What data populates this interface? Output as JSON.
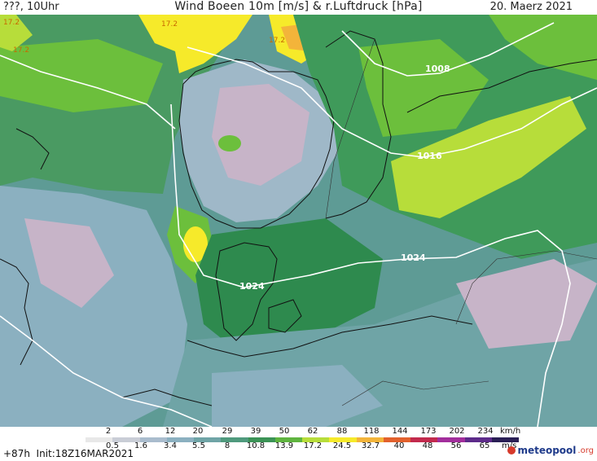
{
  "header": {
    "left": "???, 10Uhr",
    "title": "Wind Boeen 10m [m/s] & r.Luftdruck [hPa]",
    "date": "20. Maerz 2021"
  },
  "map": {
    "isobars": [
      {
        "label": "1008"
      },
      {
        "label": "1016"
      },
      {
        "label": "1024"
      },
      {
        "label": "1024"
      }
    ],
    "gust_labels": [
      "17.2",
      "17.2",
      "17.2",
      "17.2"
    ],
    "colors": {
      "very_low": "#9fb8c8",
      "low_lilac": "#c7b4c8",
      "teal": "#5e9b95",
      "mid_green": "#3f9a5a",
      "dark_green": "#2e8a4e",
      "bright_green": "#6cbf3c",
      "yellow_green": "#b7dd3a",
      "yellow": "#f6ea2a",
      "orange": "#f3b43a"
    }
  },
  "legend": {
    "kmh_ticks": [
      "2",
      "6",
      "12",
      "20",
      "29",
      "39",
      "50",
      "62",
      "88",
      "118",
      "144",
      "173",
      "202",
      "234"
    ],
    "kmh_unit": "km/h",
    "ms_ticks": [
      "0.5",
      "1.6",
      "3.4",
      "5.5",
      "8",
      "10.8",
      "13.9",
      "17.2",
      "24.5",
      "32.7",
      "40",
      "48",
      "56",
      "65"
    ],
    "ms_unit": "m/s",
    "colors": [
      "#e8e8e8",
      "#c9cdd6",
      "#a9bccd",
      "#8bb0c0",
      "#6fa4a6",
      "#4f9a7d",
      "#3b9356",
      "#5fb43f",
      "#b7dd3a",
      "#f6ea2a",
      "#f3b43a",
      "#e2612d",
      "#c22a4d",
      "#a22e9c",
      "#5d2b8a",
      "#2a1f55"
    ]
  },
  "footer": {
    "run_info": "+87h  Init:18Z16MAR2021",
    "logo_main": "meteopool",
    "logo_suffix": ".org"
  }
}
